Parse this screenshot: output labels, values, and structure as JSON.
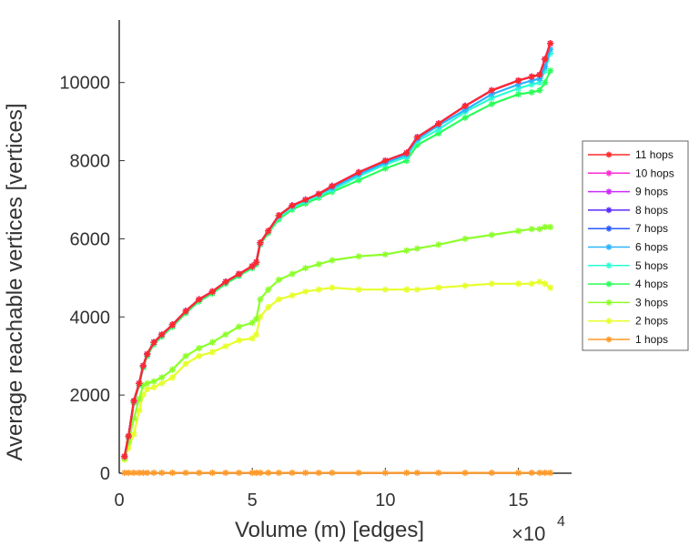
{
  "chart_data": {
    "type": "line",
    "title": "",
    "xlabel": "Volume (m) [edges]",
    "ylabel": "Average reachable vertices [vertices]",
    "x_multiplier_label": "×10",
    "x_multiplier_exponent": "4",
    "xlim": [
      0,
      17
    ],
    "ylim": [
      0,
      11600
    ],
    "xticks": [
      0,
      5,
      10,
      15
    ],
    "yticks": [
      0,
      2000,
      4000,
      6000,
      8000,
      10000
    ],
    "grid": false,
    "legend_position": "right",
    "marker": "asterisk",
    "x": [
      0.2,
      0.35,
      0.55,
      0.75,
      0.9,
      1.05,
      1.3,
      1.6,
      2.0,
      2.5,
      3.0,
      3.5,
      4.0,
      4.5,
      5.0,
      5.15,
      5.3,
      5.6,
      6.0,
      6.5,
      7.0,
      7.5,
      8.0,
      9.0,
      10.0,
      10.8,
      11.2,
      12.0,
      13.0,
      14.0,
      15.0,
      15.5,
      15.8,
      16.0,
      16.2
    ],
    "series": [
      {
        "name": "11 hops",
        "color": "#ff2a2a",
        "values": [
          430,
          950,
          1850,
          2300,
          2750,
          3050,
          3350,
          3550,
          3800,
          4150,
          4450,
          4650,
          4900,
          5100,
          5300,
          5400,
          5900,
          6200,
          6600,
          6850,
          7000,
          7150,
          7350,
          7700,
          8000,
          8200,
          8600,
          8950,
          9400,
          9800,
          10050,
          10150,
          10200,
          10600,
          11000
        ]
      },
      {
        "name": "10 hops",
        "color": "#ff2ad4",
        "values": [
          430,
          950,
          1850,
          2300,
          2750,
          3050,
          3350,
          3550,
          3800,
          4150,
          4450,
          4650,
          4900,
          5100,
          5300,
          5400,
          5900,
          6200,
          6600,
          6850,
          7000,
          7150,
          7350,
          7700,
          8000,
          8200,
          8600,
          8950,
          9400,
          9800,
          10050,
          10150,
          10200,
          10600,
          11000
        ]
      },
      {
        "name": "9 hops",
        "color": "#cc2aff",
        "values": [
          430,
          950,
          1850,
          2300,
          2750,
          3050,
          3350,
          3550,
          3800,
          4150,
          4450,
          4650,
          4900,
          5100,
          5300,
          5400,
          5900,
          6200,
          6600,
          6850,
          7000,
          7150,
          7350,
          7700,
          8000,
          8200,
          8600,
          8950,
          9400,
          9800,
          10050,
          10150,
          10200,
          10600,
          11000
        ]
      },
      {
        "name": "8 hops",
        "color": "#5a2aff",
        "values": [
          430,
          950,
          1850,
          2300,
          2750,
          3050,
          3350,
          3550,
          3800,
          4150,
          4450,
          4650,
          4900,
          5100,
          5300,
          5400,
          5900,
          6200,
          6600,
          6850,
          7000,
          7150,
          7350,
          7700,
          8000,
          8200,
          8600,
          8950,
          9400,
          9800,
          10050,
          10150,
          10200,
          10600,
          11000
        ]
      },
      {
        "name": "7 hops",
        "color": "#2a5aff",
        "values": [
          430,
          950,
          1850,
          2300,
          2750,
          3050,
          3350,
          3550,
          3800,
          4150,
          4450,
          4650,
          4900,
          5100,
          5300,
          5400,
          5900,
          6200,
          6600,
          6850,
          7000,
          7150,
          7350,
          7700,
          8000,
          8200,
          8600,
          8950,
          9400,
          9800,
          10050,
          10150,
          10200,
          10600,
          11000
        ]
      },
      {
        "name": "6 hops",
        "color": "#2ab4ff",
        "values": [
          430,
          950,
          1850,
          2300,
          2750,
          3050,
          3350,
          3550,
          3800,
          4150,
          4450,
          4650,
          4900,
          5100,
          5300,
          5400,
          5900,
          6200,
          6600,
          6850,
          7000,
          7150,
          7300,
          7650,
          7950,
          8150,
          8550,
          8900,
          9300,
          9700,
          9950,
          10050,
          10100,
          10400,
          10850
        ]
      },
      {
        "name": "5 hops",
        "color": "#2affd4",
        "values": [
          430,
          950,
          1850,
          2300,
          2750,
          3050,
          3350,
          3550,
          3800,
          4150,
          4450,
          4650,
          4900,
          5100,
          5300,
          5400,
          5900,
          6200,
          6550,
          6800,
          6950,
          7100,
          7250,
          7600,
          7900,
          8100,
          8500,
          8800,
          9250,
          9600,
          9850,
          9950,
          10000,
          10300,
          10750
        ]
      },
      {
        "name": "4 hops",
        "color": "#2aff5a",
        "values": [
          430,
          930,
          1800,
          2250,
          2700,
          3000,
          3300,
          3500,
          3750,
          4100,
          4400,
          4600,
          4850,
          5050,
          5250,
          5350,
          5850,
          6150,
          6500,
          6750,
          6900,
          7050,
          7200,
          7500,
          7800,
          8000,
          8400,
          8700,
          9100,
          9450,
          9700,
          9750,
          9800,
          10000,
          10300
        ]
      },
      {
        "name": "3 hops",
        "color": "#8cff2a",
        "values": [
          380,
          800,
          1400,
          1900,
          2250,
          2300,
          2350,
          2450,
          2650,
          3000,
          3200,
          3350,
          3550,
          3750,
          3850,
          3950,
          4450,
          4700,
          4950,
          5100,
          5250,
          5350,
          5450,
          5550,
          5600,
          5700,
          5750,
          5850,
          6000,
          6100,
          6200,
          6250,
          6250,
          6300,
          6300
        ]
      },
      {
        "name": "2 hops",
        "color": "#e6ff2a",
        "values": [
          350,
          650,
          1000,
          1600,
          2000,
          2150,
          2200,
          2300,
          2450,
          2800,
          3000,
          3100,
          3250,
          3400,
          3450,
          3550,
          4000,
          4250,
          4450,
          4550,
          4650,
          4700,
          4750,
          4700,
          4700,
          4700,
          4700,
          4750,
          4800,
          4850,
          4850,
          4850,
          4900,
          4850,
          4750
        ]
      },
      {
        "name": "1 hops",
        "color": "#ff9a2a",
        "values": [
          10,
          10,
          10,
          10,
          10,
          10,
          10,
          10,
          10,
          10,
          10,
          10,
          10,
          10,
          10,
          10,
          10,
          10,
          10,
          10,
          10,
          10,
          10,
          10,
          10,
          10,
          10,
          10,
          10,
          10,
          10,
          10,
          10,
          10,
          10
        ]
      }
    ]
  }
}
